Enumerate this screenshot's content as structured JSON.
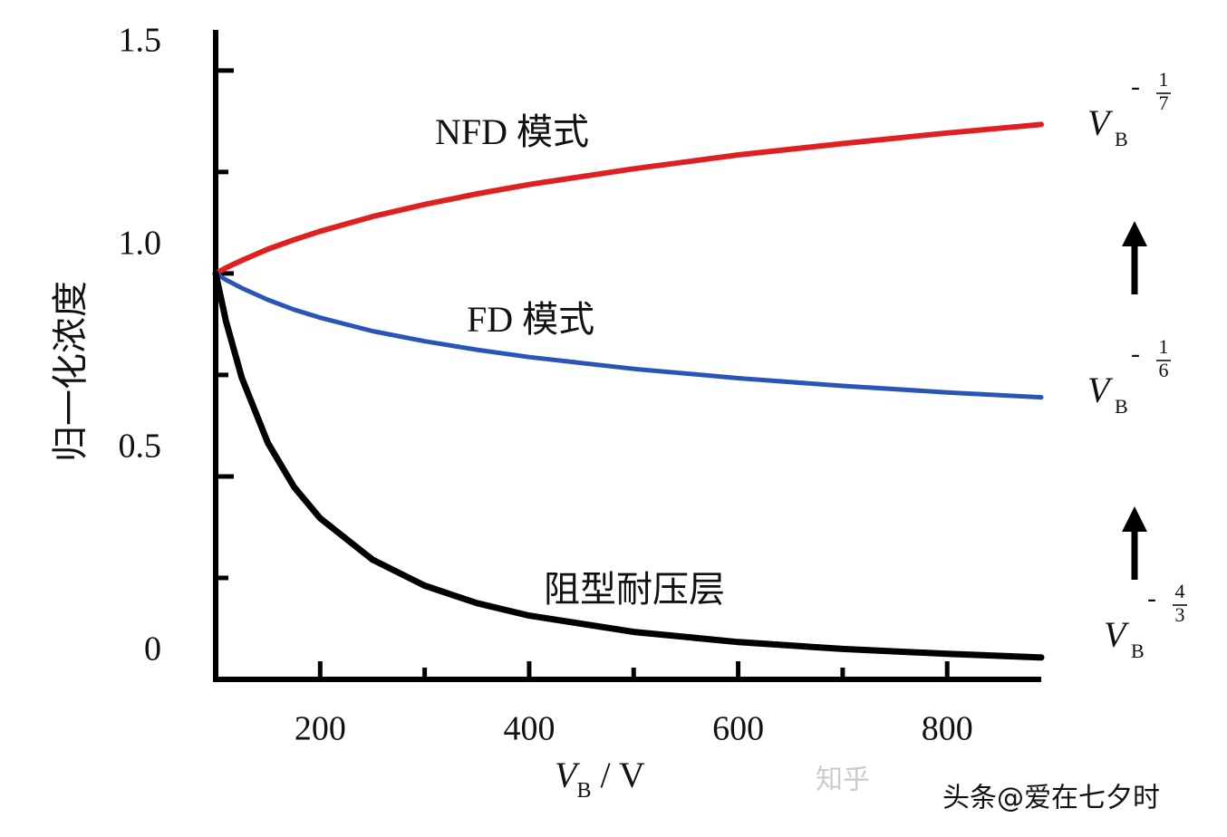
{
  "chart_data": {
    "type": "line",
    "y_label": "归一化浓度",
    "x_label": {
      "base": "V",
      "sub": "B",
      "rest": " / V"
    },
    "x": [
      100,
      110,
      125,
      150,
      175,
      200,
      250,
      300,
      350,
      400,
      500,
      600,
      700,
      800,
      890
    ],
    "series": [
      {
        "name": "NFD 模式",
        "color": "#e02020",
        "values": [
          1,
          1.014,
          1.032,
          1.06,
          1.083,
          1.104,
          1.14,
          1.17,
          1.196,
          1.219,
          1.258,
          1.292,
          1.32,
          1.346,
          1.367
        ]
      },
      {
        "name": "FD 模式",
        "color": "#2a55b8",
        "values": [
          1,
          0.984,
          0.964,
          0.935,
          0.911,
          0.891,
          0.858,
          0.833,
          0.812,
          0.794,
          0.765,
          0.742,
          0.723,
          0.707,
          0.695
        ]
      },
      {
        "name": "阻型耐压层",
        "color": "#000000",
        "values": [
          1,
          0.881,
          0.743,
          0.582,
          0.474,
          0.397,
          0.295,
          0.231,
          0.188,
          0.157,
          0.117,
          0.092,
          0.075,
          0.063,
          0.054
        ]
      }
    ],
    "xlim": [
      100,
      890
    ],
    "xticks": [
      200,
      400,
      600,
      800
    ],
    "xminor_ticks": [
      300,
      500,
      700
    ],
    "ylim": [
      0,
      1.6
    ],
    "yticks": [
      0,
      0.5,
      {
        "value": 1,
        "label": "1.0"
      },
      1.5
    ],
    "yminor_ticks": [
      0.25,
      0.75,
      1.25
    ],
    "annotations": [
      {
        "base": "V",
        "sub": "B",
        "sign": "-",
        "num": "1",
        "den": "7"
      },
      {
        "base": "V",
        "sub": "B",
        "sign": "-",
        "num": "1",
        "den": "6"
      },
      {
        "base": "V",
        "sub": "B",
        "sign": "-",
        "num": "4",
        "den": "3"
      }
    ],
    "watermarks": [
      "知乎",
      "头条@爱在七夕时"
    ]
  }
}
